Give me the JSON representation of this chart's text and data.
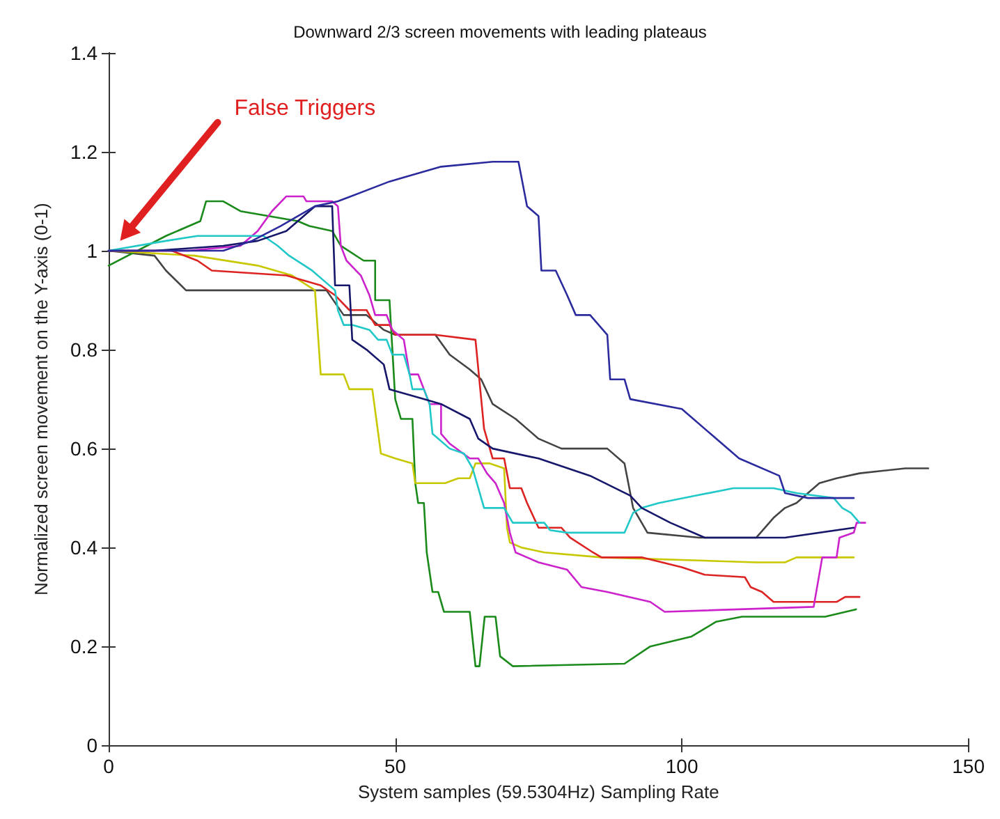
{
  "chart_data": {
    "type": "line",
    "title": "Downward 2/3 screen movements with leading plateaus",
    "xlabel": "System samples (59.5304Hz) Sampling Rate",
    "ylabel": "Normalized screen movement on the Y-axis (0-1)",
    "xlim": [
      0,
      150
    ],
    "xticks": [
      0,
      50,
      100,
      150
    ],
    "ylim": [
      0,
      1.4
    ],
    "yticks": [
      0,
      0.2,
      0.4,
      0.6,
      0.8,
      1,
      1.2,
      1.4
    ],
    "marker": "none",
    "line_style": "solid",
    "annotations": [
      {
        "text": "False Triggers",
        "x": 2,
        "y": 1.02
      }
    ],
    "series": [
      {
        "color": "#444444",
        "x": [
          0,
          8,
          10,
          13.5,
          38,
          41,
          45,
          48,
          50,
          57,
          59.5,
          63,
          65,
          67,
          71,
          75,
          79,
          87,
          90,
          91.5,
          94,
          103,
          113,
          116,
          118,
          120,
          124,
          127,
          131,
          139,
          143
        ],
        "values": [
          1.0,
          0.99,
          0.96,
          0.92,
          0.92,
          0.87,
          0.87,
          0.84,
          0.83,
          0.83,
          0.79,
          0.76,
          0.74,
          0.69,
          0.66,
          0.62,
          0.6,
          0.6,
          0.57,
          0.48,
          0.43,
          0.42,
          0.42,
          0.46,
          0.48,
          0.49,
          0.53,
          0.54,
          0.55,
          0.56,
          0.56
        ]
      },
      {
        "color": "#1a8a1a",
        "x": [
          0,
          10,
          16,
          17,
          20,
          23,
          33,
          35,
          39,
          40.5,
          44.5,
          46.5,
          46.5,
          49,
          50,
          51,
          53,
          53.5,
          54,
          55,
          55.5,
          56.5,
          57.5,
          58.5,
          63,
          64,
          64.7,
          65.6,
          67.5,
          68.3,
          70.5,
          90,
          94.5,
          101.7,
          106,
          110.5,
          125,
          130.4
        ],
        "values": [
          0.97,
          1.03,
          1.06,
          1.1,
          1.1,
          1.08,
          1.06,
          1.05,
          1.04,
          1.01,
          0.98,
          0.98,
          0.9,
          0.9,
          0.7,
          0.66,
          0.66,
          0.53,
          0.49,
          0.49,
          0.39,
          0.31,
          0.31,
          0.27,
          0.27,
          0.16,
          0.16,
          0.26,
          0.26,
          0.18,
          0.16,
          0.165,
          0.2,
          0.22,
          0.25,
          0.26,
          0.26,
          0.275
        ]
      },
      {
        "color": "#c8c800",
        "x": [
          0,
          15,
          26,
          32,
          36,
          37,
          41,
          42,
          46,
          47.5,
          50,
          53,
          53.5,
          58.7,
          61,
          63,
          64,
          66.5,
          69,
          69.5,
          70,
          72,
          76,
          86,
          113,
          118,
          120,
          130
        ],
        "values": [
          1.0,
          0.99,
          0.97,
          0.95,
          0.92,
          0.75,
          0.75,
          0.72,
          0.72,
          0.59,
          0.58,
          0.57,
          0.53,
          0.53,
          0.54,
          0.54,
          0.57,
          0.57,
          0.56,
          0.44,
          0.41,
          0.4,
          0.39,
          0.38,
          0.37,
          0.37,
          0.38,
          0.38
        ]
      },
      {
        "color": "#dd2222",
        "x": [
          0,
          11,
          15.5,
          18,
          31,
          37,
          39.5,
          42,
          45,
          46.5,
          49,
          50,
          57,
          64,
          65.5,
          67,
          69,
          70,
          72,
          73,
          75,
          79,
          80.5,
          84.5,
          86,
          93,
          100,
          104,
          111,
          112,
          114,
          116,
          127,
          128.5,
          131
        ],
        "values": [
          1.0,
          1.0,
          0.98,
          0.96,
          0.95,
          0.93,
          0.91,
          0.88,
          0.88,
          0.85,
          0.85,
          0.83,
          0.83,
          0.82,
          0.64,
          0.58,
          0.58,
          0.52,
          0.52,
          0.49,
          0.44,
          0.44,
          0.42,
          0.39,
          0.38,
          0.38,
          0.36,
          0.345,
          0.34,
          0.32,
          0.31,
          0.29,
          0.29,
          0.3,
          0.3
        ]
      },
      {
        "color": "#cc22cc",
        "x": [
          0,
          14,
          23,
          26,
          28.5,
          31,
          34,
          34.5,
          39,
          40,
          40.5,
          41.5,
          44,
          45.5,
          46.5,
          48.5,
          49.5,
          51.5,
          52.5,
          54,
          55,
          56,
          58,
          58,
          59.5,
          63,
          64.5,
          66,
          67.5,
          69,
          70,
          71,
          73,
          75,
          80,
          82.5,
          87,
          94.5,
          97,
          123,
          124.5,
          127,
          127.5,
          130,
          130.5,
          132
        ],
        "values": [
          1.0,
          1.0,
          1.01,
          1.04,
          1.08,
          1.11,
          1.11,
          1.1,
          1.1,
          1.09,
          1.01,
          0.98,
          0.95,
          0.91,
          0.87,
          0.87,
          0.84,
          0.82,
          0.75,
          0.75,
          0.72,
          0.69,
          0.69,
          0.63,
          0.61,
          0.58,
          0.58,
          0.55,
          0.53,
          0.49,
          0.43,
          0.39,
          0.38,
          0.37,
          0.355,
          0.32,
          0.31,
          0.29,
          0.27,
          0.28,
          0.38,
          0.38,
          0.42,
          0.43,
          0.45,
          0.45
        ]
      },
      {
        "color": "#22c8c8",
        "x": [
          0,
          10,
          15.5,
          27,
          29.5,
          31.5,
          35.5,
          39.5,
          40,
          41,
          42.5,
          45.5,
          47,
          48.5,
          49.5,
          51.5,
          52.5,
          53,
          55,
          56,
          56.5,
          59.5,
          62,
          63.5,
          64.5,
          65.5,
          69,
          70.5,
          76,
          77,
          80,
          90,
          91.5,
          93,
          96,
          102.5,
          109,
          116,
          120,
          126.5,
          128,
          129.5,
          131
        ],
        "values": [
          1.0,
          1.02,
          1.03,
          1.03,
          1.01,
          0.99,
          0.96,
          0.92,
          0.88,
          0.85,
          0.85,
          0.84,
          0.82,
          0.82,
          0.79,
          0.79,
          0.75,
          0.72,
          0.72,
          0.69,
          0.63,
          0.6,
          0.59,
          0.56,
          0.52,
          0.48,
          0.48,
          0.45,
          0.45,
          0.435,
          0.43,
          0.43,
          0.47,
          0.48,
          0.49,
          0.505,
          0.52,
          0.52,
          0.51,
          0.5,
          0.48,
          0.47,
          0.45
        ]
      },
      {
        "color": "#16166b",
        "x": [
          0,
          8,
          20,
          26,
          31,
          36,
          39,
          39.5,
          42,
          42.5,
          45,
          48,
          49,
          55,
          58,
          63,
          64.5,
          67,
          75,
          84,
          91,
          93,
          98,
          104,
          118,
          130
        ],
        "values": [
          1.0,
          1.0,
          1.01,
          1.02,
          1.04,
          1.09,
          1.09,
          0.93,
          0.93,
          0.82,
          0.8,
          0.77,
          0.72,
          0.7,
          0.69,
          0.66,
          0.62,
          0.6,
          0.58,
          0.545,
          0.505,
          0.48,
          0.45,
          0.42,
          0.42,
          0.44
        ]
      },
      {
        "color": "#2b2b9e",
        "x": [
          0,
          20,
          25,
          30,
          36,
          40,
          49,
          58,
          67,
          71.5,
          73,
          75,
          75.5,
          78,
          80,
          81.5,
          84,
          87,
          87.5,
          90,
          91,
          100,
          105,
          110,
          117,
          118,
          122,
          130
        ],
        "values": [
          1.0,
          1.0,
          1.02,
          1.05,
          1.09,
          1.1,
          1.14,
          1.17,
          1.18,
          1.18,
          1.09,
          1.07,
          0.96,
          0.96,
          0.91,
          0.87,
          0.87,
          0.83,
          0.74,
          0.74,
          0.7,
          0.68,
          0.63,
          0.58,
          0.545,
          0.51,
          0.5,
          0.5
        ]
      }
    ]
  }
}
